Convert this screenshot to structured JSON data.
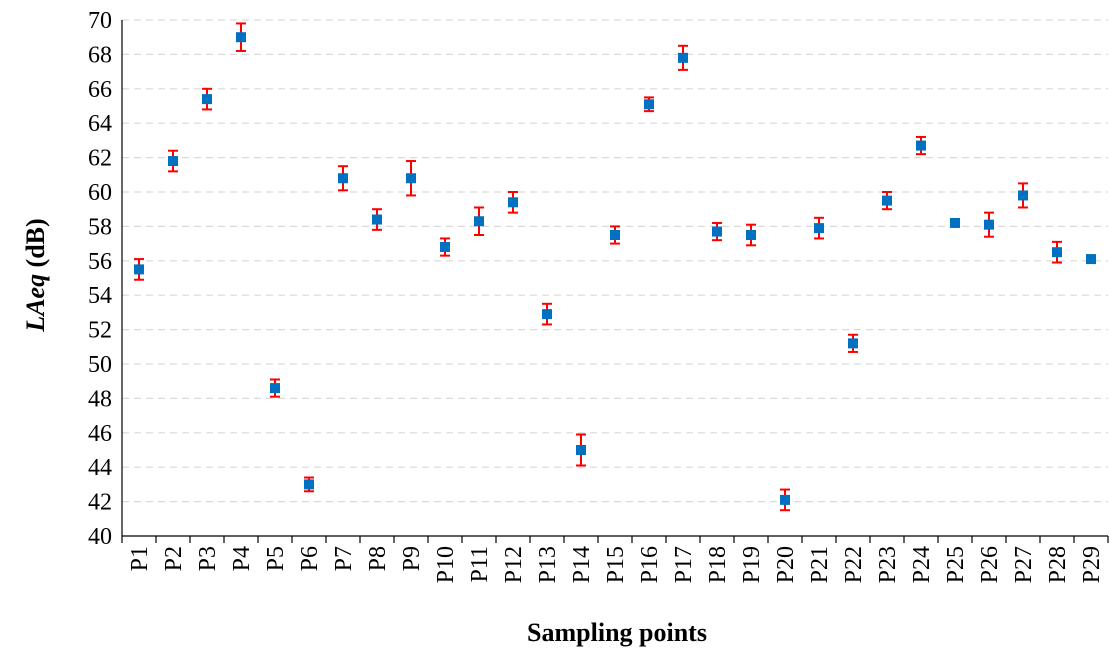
{
  "chart_data": {
    "type": "scatter",
    "title": "",
    "xlabel": "Sampling points",
    "ylabel_italic": "LAeq",
    "ylabel_unit": " (dB)",
    "ylim": [
      40,
      70
    ],
    "ytick_step": 2,
    "grid": "horizontal dashed",
    "legend": "none",
    "categories": [
      "P1",
      "P2",
      "P3",
      "P4",
      "P5",
      "P6",
      "P7",
      "P8",
      "P9",
      "P10",
      "P11",
      "P12",
      "P13",
      "P14",
      "P15",
      "P16",
      "P17",
      "P18",
      "P19",
      "P20",
      "P21",
      "P22",
      "P23",
      "P24",
      "P25",
      "P26",
      "P27",
      "P28",
      "P29"
    ],
    "values": [
      55.5,
      61.8,
      65.4,
      69.0,
      48.6,
      43.0,
      60.8,
      58.4,
      60.8,
      56.8,
      58.3,
      59.4,
      52.9,
      45.0,
      57.5,
      65.1,
      67.8,
      57.7,
      57.5,
      42.1,
      57.9,
      51.2,
      59.5,
      62.7,
      58.2,
      58.1,
      59.8,
      56.5,
      56.1
    ],
    "errors": [
      0.6,
      0.6,
      0.6,
      0.8,
      0.5,
      0.4,
      0.7,
      0.6,
      1.0,
      0.5,
      0.8,
      0.6,
      0.6,
      0.9,
      0.5,
      0.4,
      0.7,
      0.5,
      0.6,
      0.6,
      0.6,
      0.5,
      0.5,
      0.5,
      0.2,
      0.7,
      0.7,
      0.6,
      0.2
    ],
    "marker_color": "#0070C0",
    "errorbar_color": "#FF0000",
    "grid_color": "#D9D9D9",
    "axis_color": "#000000"
  }
}
